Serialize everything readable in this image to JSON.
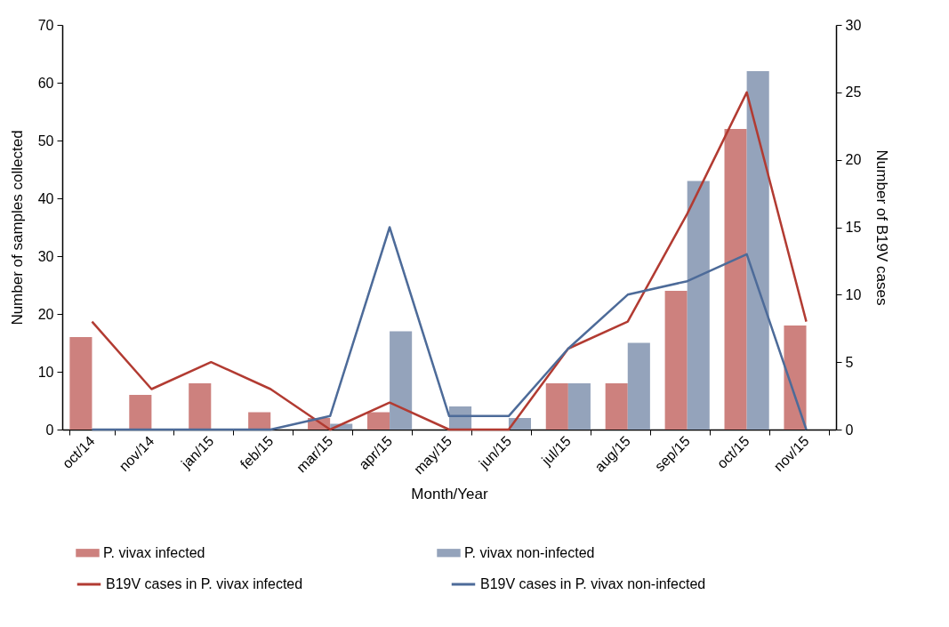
{
  "chart_data": {
    "type": "bar",
    "xlabel": "Month/Year",
    "ylabel": "Number  of samples collected",
    "y2label": "Number of B19V cases",
    "categories": [
      "oct/14",
      "nov/14",
      "jan/15",
      "feb/15",
      "mar/15",
      "apr/15",
      "may/15",
      "jun/15",
      "jul/15",
      "aug/15",
      "sep/15",
      "oct/15",
      "nov/15"
    ],
    "series": [
      {
        "name": "P. vivax infected",
        "color": "#cd817e",
        "values": [
          16,
          6,
          8,
          3,
          2,
          3,
          0,
          0,
          8,
          8,
          24,
          52,
          18
        ]
      },
      {
        "name": "P. vivax non-infected",
        "color": "#94a3bb",
        "values": [
          0,
          0,
          0,
          0,
          1,
          17,
          4,
          2,
          8,
          15,
          43,
          62,
          0
        ]
      },
      {
        "name": "B19V cases in P. vivax infected",
        "type": "line",
        "axis": "y2",
        "color": "#b23b32",
        "values": [
          8,
          3,
          5,
          3,
          0,
          2,
          0,
          0,
          6,
          8,
          16,
          25,
          8
        ]
      },
      {
        "name": "B19V cases in P. vivax non-infected",
        "type": "line",
        "axis": "y2",
        "color": "#4d6b99",
        "values": [
          0,
          0,
          0,
          0,
          1,
          15,
          1,
          1,
          6,
          10,
          11,
          13,
          0
        ]
      }
    ],
    "ylim": [
      0,
      70
    ],
    "yticks": [
      0,
      10,
      20,
      30,
      40,
      50,
      60,
      70
    ],
    "y2lim": [
      0,
      30
    ],
    "y2ticks": [
      0,
      5,
      10,
      15,
      20,
      25,
      30
    ],
    "grid": false,
    "legend": "bottom"
  }
}
